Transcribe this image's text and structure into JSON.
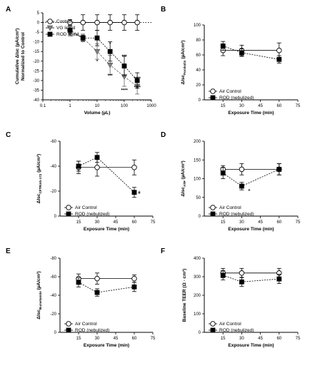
{
  "figure_panels": [
    "A",
    "B",
    "C",
    "D",
    "E",
    "F"
  ],
  "chart_data": [
    {
      "panel": "A",
      "type": "line",
      "xscale": "log",
      "xlabel": "Volume (µL)",
      "ylabel_line1": "Cumulative ΔIsc (µA/cm²)",
      "ylabel_line2": "Normalized to Control",
      "xlim": [
        0.1,
        1000
      ],
      "ylim": [
        -40,
        5
      ],
      "x_ticks": [
        0.1,
        1,
        10,
        100,
        1000
      ],
      "x_tick_labels": [
        "0.1",
        "1",
        "10",
        "100",
        "1000"
      ],
      "y_ticks": [
        5,
        0,
        -5,
        -10,
        -15,
        -20,
        -25,
        -30,
        -35,
        -40
      ],
      "y_tick_labels": [
        "5",
        "0",
        "-5",
        "-10",
        "-15",
        "-20",
        "-25",
        "-30",
        "-35",
        "-40"
      ],
      "reference_line": 0,
      "series": [
        {
          "name": "Control",
          "marker": "open-circle",
          "line": "solid",
          "x": [
            1,
            3,
            10,
            30,
            100,
            300
          ],
          "y": [
            0,
            0,
            0,
            0,
            0,
            0
          ],
          "err": [
            1.5,
            4,
            4,
            4,
            4,
            4
          ]
        },
        {
          "name": "VG liquid",
          "marker": "gray-triangle-down",
          "line": "dashed",
          "x": [
            1,
            3,
            10,
            30,
            100,
            300
          ],
          "y": [
            -5,
            -8,
            -15,
            -22,
            -28,
            -33
          ],
          "err": [
            2,
            2,
            4,
            5,
            5,
            4
          ]
        },
        {
          "name": "ROD liquid",
          "marker": "filled-square",
          "line": "dashed",
          "x": [
            1,
            3,
            10,
            30,
            100,
            300
          ],
          "y": [
            -4,
            -8,
            -8,
            -15,
            -22.5,
            -30
          ],
          "err": [
            2,
            1.5,
            4,
            5,
            5,
            4
          ]
        }
      ],
      "annotations": [
        {
          "text": "*",
          "x": 10,
          "y": -20
        },
        {
          "text": "*",
          "x": 30,
          "y": -11
        },
        {
          "text": "***",
          "x": 30,
          "y": -27.5
        },
        {
          "text": "***",
          "x": 100,
          "y": -17.5
        },
        {
          "text": "****",
          "x": 100,
          "y": -35
        },
        {
          "text": "****",
          "x": 300,
          "y": -29
        },
        {
          "text": "****",
          "x": 300,
          "y": -33.5
        }
      ]
    },
    {
      "panel": "B",
      "type": "line",
      "xlabel": "Exposure Time (min)",
      "ylabel_main": "ΔIsc",
      "ylabel_sub": "Forskolin",
      "ylabel_unit": "(µA/cm²)",
      "xlim": [
        0,
        75
      ],
      "ylim": [
        0,
        100
      ],
      "x_ticks": [
        15,
        30,
        45,
        60,
        75
      ],
      "y_ticks": [
        0,
        20,
        40,
        60,
        80,
        100
      ],
      "series": [
        {
          "name": "Air Control",
          "marker": "open-circle",
          "line": "solid",
          "x": [
            15,
            30,
            60
          ],
          "y": [
            66,
            66,
            66
          ],
          "err": [
            7,
            7,
            10
          ]
        },
        {
          "name": "ROD (nebulized)",
          "marker": "filled-square",
          "line": "dashed",
          "x": [
            15,
            30,
            60
          ],
          "y": [
            72,
            63,
            54
          ],
          "err": [
            6,
            5,
            5
          ]
        }
      ],
      "annotations": []
    },
    {
      "panel": "C",
      "type": "line",
      "xlabel": "Exposure Time (min)",
      "ylabel_main": "ΔIsc",
      "ylabel_sub": "CFTRinh-172",
      "ylabel_unit": "(µA/cm²)",
      "xlim": [
        0,
        75
      ],
      "ylim": [
        0,
        -60
      ],
      "x_ticks": [
        15,
        30,
        45,
        60,
        75
      ],
      "y_ticks": [
        0,
        -20,
        -40,
        -60
      ],
      "series": [
        {
          "name": "Air Control",
          "marker": "open-circle",
          "line": "solid",
          "x": [
            15,
            30,
            60
          ],
          "y": [
            -39,
            -39,
            -39
          ],
          "err": [
            5,
            7,
            6
          ]
        },
        {
          "name": "ROD (nebulized)",
          "marker": "filled-square",
          "line": "dashed",
          "x": [
            15,
            30,
            60
          ],
          "y": [
            -40,
            -47,
            -19
          ],
          "err": [
            4,
            4,
            4
          ]
        }
      ],
      "annotations": [
        {
          "text": "#",
          "x": 64,
          "y": -19
        }
      ]
    },
    {
      "panel": "D",
      "type": "line",
      "xlabel": "Exposure Time (min)",
      "ylabel_main": "ΔIsc",
      "ylabel_sub": "ATP",
      "ylabel_unit": "(µA/cm²)",
      "xlim": [
        0,
        75
      ],
      "ylim": [
        0,
        200
      ],
      "x_ticks": [
        15,
        30,
        45,
        60,
        75
      ],
      "y_ticks": [
        0,
        50,
        100,
        150,
        200
      ],
      "series": [
        {
          "name": "Air Control",
          "marker": "open-circle",
          "line": "solid",
          "x": [
            15,
            30,
            60
          ],
          "y": [
            125,
            125,
            125
          ],
          "err": [
            10,
            15,
            15
          ]
        },
        {
          "name": "ROD (nebulized)",
          "marker": "filled-square",
          "line": "dashed",
          "x": [
            15,
            30,
            60
          ],
          "y": [
            115,
            80,
            125
          ],
          "err": [
            15,
            10,
            15
          ]
        }
      ],
      "annotations": [
        {
          "text": "+",
          "x": 36,
          "y": 70
        }
      ]
    },
    {
      "panel": "E",
      "type": "line",
      "xlabel": "Exposure Time (min)",
      "ylabel_main": "ΔIsc",
      "ylabel_sub": "Bumetanide",
      "ylabel_unit": "(µA/cm²)",
      "xlim": [
        0,
        75
      ],
      "ylim": [
        0,
        -80
      ],
      "x_ticks": [
        15,
        30,
        45,
        60,
        75
      ],
      "y_ticks": [
        0,
        -20,
        -40,
        -60,
        -80
      ],
      "series": [
        {
          "name": "Air Control",
          "marker": "open-circle",
          "line": "solid",
          "x": [
            15,
            30,
            60
          ],
          "y": [
            -58,
            -58,
            -58
          ],
          "err": [
            5,
            6,
            4
          ]
        },
        {
          "name": "ROD (nebulized)",
          "marker": "filled-square",
          "line": "dashed",
          "x": [
            15,
            30,
            60
          ],
          "y": [
            -54,
            -43,
            -49
          ],
          "err": [
            5,
            4,
            5
          ]
        }
      ],
      "annotations": []
    },
    {
      "panel": "F",
      "type": "line",
      "xlabel": "Exposure Time (min)",
      "ylabel_main": "Baseline TEER (Ω · cm²)",
      "xlim": [
        0,
        75
      ],
      "ylim": [
        0,
        400
      ],
      "x_ticks": [
        15,
        30,
        45,
        60,
        75
      ],
      "y_ticks": [
        0,
        100,
        200,
        300,
        400
      ],
      "series": [
        {
          "name": "Air Control",
          "marker": "open-circle",
          "line": "solid",
          "x": [
            15,
            30,
            60
          ],
          "y": [
            320,
            320,
            320
          ],
          "err": [
            25,
            25,
            25
          ]
        },
        {
          "name": "ROD (nebulized)",
          "marker": "filled-square",
          "line": "dashed",
          "x": [
            15,
            30,
            60
          ],
          "y": [
            308,
            272,
            288
          ],
          "err": [
            25,
            25,
            25
          ]
        }
      ],
      "annotations": []
    }
  ]
}
